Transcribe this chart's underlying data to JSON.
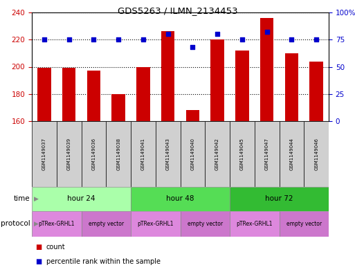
{
  "title": "GDS5263 / ILMN_2134453",
  "samples": [
    "GSM1149037",
    "GSM1149039",
    "GSM1149036",
    "GSM1149038",
    "GSM1149041",
    "GSM1149043",
    "GSM1149040",
    "GSM1149042",
    "GSM1149045",
    "GSM1149047",
    "GSM1149044",
    "GSM1149046"
  ],
  "counts": [
    199,
    199,
    197,
    180,
    200,
    226,
    168,
    220,
    212,
    236,
    210,
    204
  ],
  "percentiles": [
    75,
    75,
    75,
    75,
    75,
    80,
    68,
    80,
    75,
    82,
    75,
    75
  ],
  "ylim_left": [
    160,
    240
  ],
  "ylim_right": [
    0,
    100
  ],
  "yticks_left": [
    160,
    180,
    200,
    220,
    240
  ],
  "yticks_right": [
    0,
    25,
    50,
    75,
    100
  ],
  "time_groups": [
    {
      "label": "hour 24",
      "start": 0,
      "end": 4,
      "color": "#aaffaa"
    },
    {
      "label": "hour 48",
      "start": 4,
      "end": 8,
      "color": "#55dd55"
    },
    {
      "label": "hour 72",
      "start": 8,
      "end": 12,
      "color": "#33bb33"
    }
  ],
  "protocol_groups": [
    {
      "label": "pTRex-GRHL1",
      "start": 0,
      "end": 2,
      "color": "#ee88ee"
    },
    {
      "label": "empty vector",
      "start": 2,
      "end": 4,
      "color": "#ee88ee"
    },
    {
      "label": "pTRex-GRHL1",
      "start": 4,
      "end": 6,
      "color": "#ee88ee"
    },
    {
      "label": "empty vector",
      "start": 6,
      "end": 8,
      "color": "#ee88ee"
    },
    {
      "label": "pTRex-GRHL1",
      "start": 8,
      "end": 10,
      "color": "#ee88ee"
    },
    {
      "label": "empty vector",
      "start": 10,
      "end": 12,
      "color": "#ee88ee"
    }
  ],
  "bar_color": "#cc0000",
  "dot_color": "#0000cc",
  "bar_width": 0.55,
  "label_color_left": "#cc0000",
  "label_color_right": "#0000cc",
  "grid_color": "#000000",
  "sample_box_color": "#d0d0d0",
  "background_color": "#ffffff"
}
